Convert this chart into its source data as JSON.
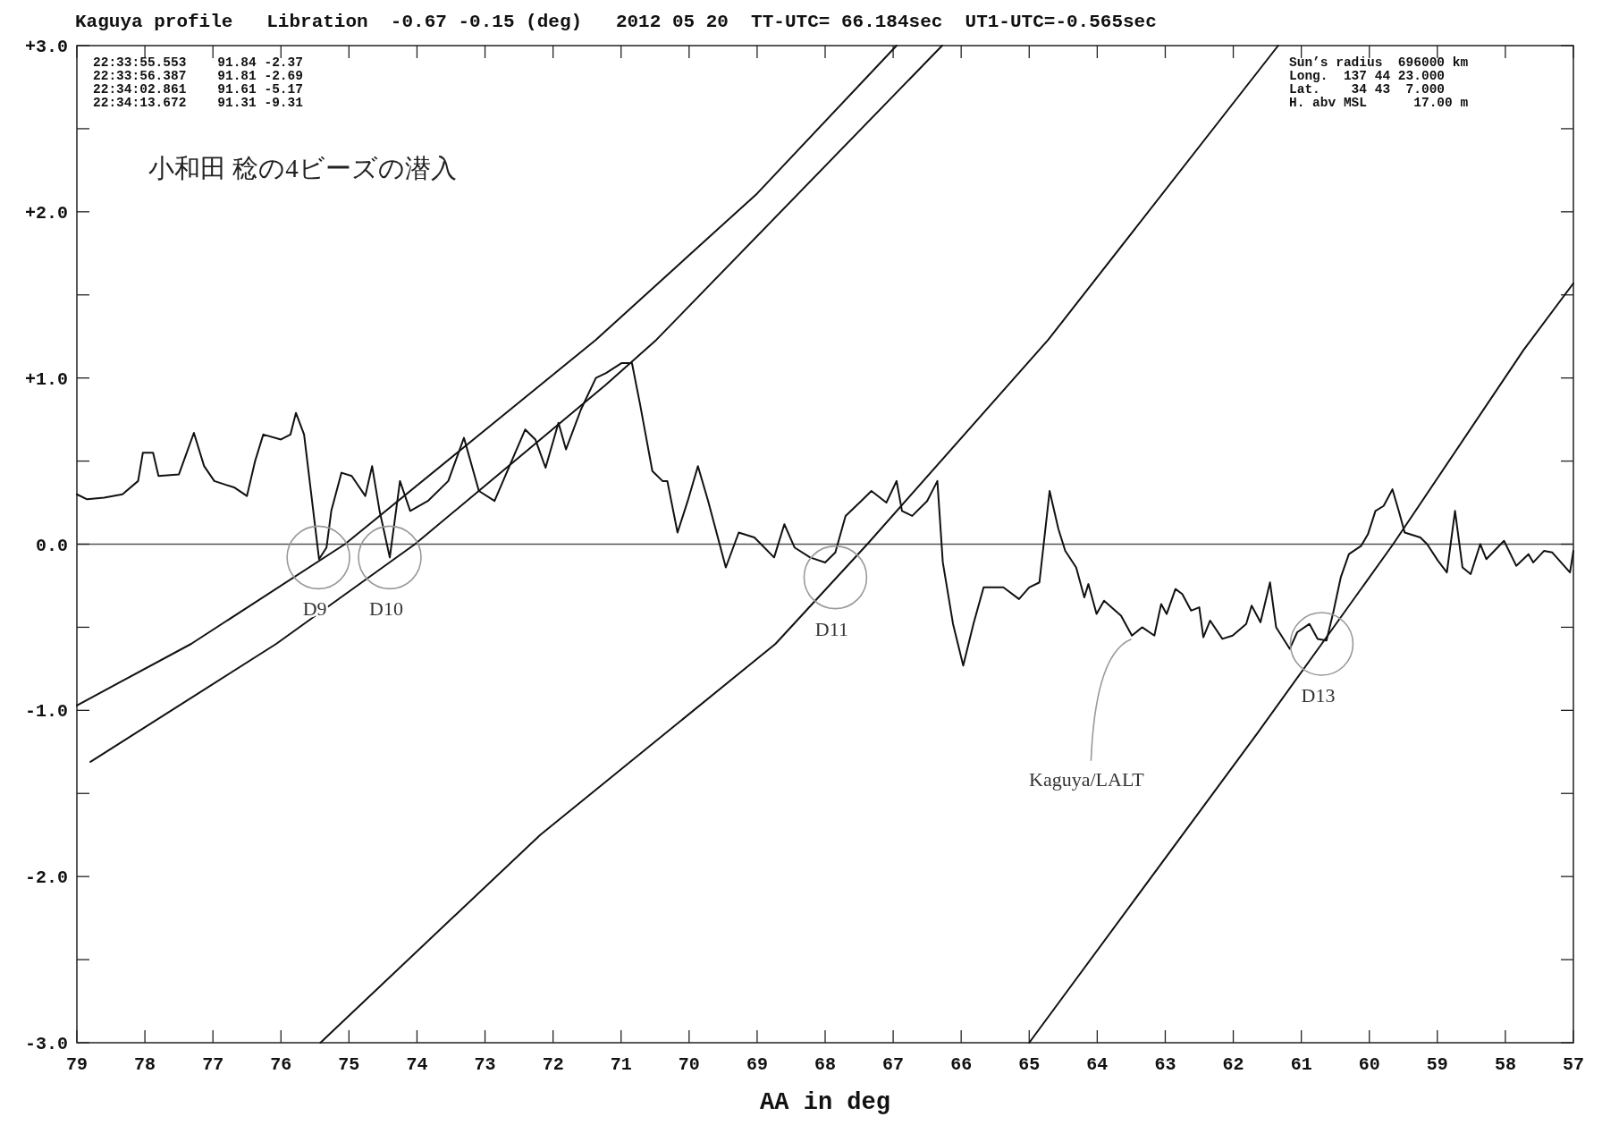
{
  "chart_data": {
    "type": "line",
    "title": "Kaguya profile   Libration  -0.67 -0.15 (deg)   2012 05 20  TT-UTC= 66.184sec  UT1-UTC=-0.565sec",
    "xlabel": "AA in deg",
    "xlim": [
      79,
      57
    ],
    "ylim": [
      -3,
      3
    ],
    "xticks": [
      79,
      78,
      77,
      76,
      75,
      74,
      73,
      72,
      71,
      70,
      69,
      68,
      67,
      66,
      65,
      64,
      63,
      62,
      61,
      60,
      59,
      58,
      57
    ],
    "yticks": [
      {
        "value": 3,
        "label": "+3.0"
      },
      {
        "value": 2.5,
        "label": null
      },
      {
        "value": 2,
        "label": "+2.0"
      },
      {
        "value": 1.5,
        "label": null
      },
      {
        "value": 1,
        "label": "+1.0"
      },
      {
        "value": 0.5,
        "label": null
      },
      {
        "value": 0,
        "label": "0.0"
      },
      {
        "value": -0.5,
        "label": null
      },
      {
        "value": -1,
        "label": "-1.0"
      },
      {
        "value": -1.5,
        "label": null
      },
      {
        "value": -2,
        "label": "-2.0"
      },
      {
        "value": -2.5,
        "label": null
      },
      {
        "value": -3,
        "label": "-3.0"
      }
    ],
    "series": [
      {
        "color": "#111111",
        "x": [
          79.0,
          78.85,
          78.6,
          78.33,
          78.1,
          78.03,
          77.88,
          77.8,
          77.5,
          77.28,
          77.13,
          76.98,
          76.68,
          76.5,
          76.38,
          76.26,
          76.0,
          75.86,
          75.78,
          75.66,
          75.56,
          75.44,
          75.33,
          75.26,
          75.11,
          74.96,
          74.76,
          74.66,
          74.55,
          74.4,
          74.25,
          74.1,
          73.84,
          73.54,
          73.31,
          73.09,
          72.86,
          72.64,
          72.41,
          72.26,
          72.11,
          71.92,
          71.81,
          71.59,
          71.37,
          71.22,
          70.99,
          70.84,
          70.72,
          70.54,
          70.39,
          70.32,
          70.17,
          70.02,
          69.87,
          69.72,
          69.46,
          69.27,
          69.04,
          68.75,
          68.6,
          68.45,
          68.22,
          68.0,
          67.85,
          67.7,
          67.47,
          67.32,
          67.1,
          66.95,
          66.87,
          66.72,
          66.5,
          66.35,
          66.27,
          66.12,
          65.97,
          65.82,
          65.67,
          65.38,
          65.15,
          65.0,
          64.85,
          64.7,
          64.57,
          64.47,
          64.31,
          64.19,
          64.13,
          64.01,
          63.9,
          63.65,
          63.49,
          63.34,
          63.16,
          63.06,
          62.98,
          62.85,
          62.75,
          62.62,
          62.5,
          62.44,
          62.34,
          62.16,
          62.01,
          61.81,
          61.73,
          61.6,
          61.46,
          61.37,
          61.17,
          61.06,
          60.88,
          60.76,
          60.63,
          60.53,
          60.42,
          60.3,
          60.12,
          60.02,
          59.91,
          59.79,
          59.66,
          59.56,
          59.48,
          59.25,
          59.15,
          58.99,
          58.86,
          58.74,
          58.63,
          58.51,
          58.37,
          58.28,
          58.02,
          57.84,
          57.66,
          57.59,
          57.43,
          57.31,
          57.05,
          57.0
        ],
        "values": [
          0.3,
          0.27,
          0.28,
          0.3,
          0.38,
          0.55,
          0.55,
          0.41,
          0.42,
          0.67,
          0.47,
          0.38,
          0.34,
          0.29,
          0.5,
          0.66,
          0.63,
          0.66,
          0.79,
          0.66,
          0.32,
          -0.09,
          -0.02,
          0.2,
          0.43,
          0.41,
          0.29,
          0.47,
          0.2,
          -0.08,
          0.38,
          0.2,
          0.26,
          0.38,
          0.64,
          0.32,
          0.26,
          0.47,
          0.69,
          0.63,
          0.46,
          0.73,
          0.57,
          0.81,
          1.0,
          1.03,
          1.09,
          1.09,
          0.84,
          0.44,
          0.38,
          0.38,
          0.07,
          0.26,
          0.47,
          0.26,
          -0.14,
          0.07,
          0.04,
          -0.08,
          0.12,
          -0.02,
          -0.08,
          -0.11,
          -0.05,
          0.17,
          0.26,
          0.32,
          0.25,
          0.38,
          0.2,
          0.17,
          0.26,
          0.38,
          -0.11,
          -0.48,
          -0.73,
          -0.48,
          -0.26,
          -0.26,
          -0.33,
          -0.26,
          -0.23,
          0.32,
          0.09,
          -0.04,
          -0.14,
          -0.32,
          -0.24,
          -0.42,
          -0.34,
          -0.43,
          -0.55,
          -0.5,
          -0.55,
          -0.36,
          -0.42,
          -0.27,
          -0.3,
          -0.4,
          -0.38,
          -0.56,
          -0.46,
          -0.57,
          -0.55,
          -0.48,
          -0.37,
          -0.47,
          -0.23,
          -0.5,
          -0.63,
          -0.53,
          -0.48,
          -0.57,
          -0.58,
          -0.41,
          -0.2,
          -0.06,
          -0.01,
          0.06,
          0.2,
          0.23,
          0.33,
          0.19,
          0.07,
          0.04,
          0.0,
          -0.1,
          -0.17,
          0.2,
          -0.14,
          -0.18,
          0.0,
          -0.09,
          0.02,
          -0.13,
          -0.06,
          -0.11,
          -0.04,
          -0.05,
          -0.17,
          -0.04
        ]
      },
      {
        "color": "#111111",
        "x": [
          79,
          77.32,
          75.06,
          71.37,
          69,
          66.95
        ],
        "values": [
          -0.97,
          -0.6,
          0,
          1.23,
          2.11,
          3.0
        ]
      },
      {
        "color": "#111111",
        "x": [
          78.8,
          76.07,
          74.03,
          71.22,
          70.48,
          66.28
        ],
        "values": [
          -1.31,
          -0.6,
          0,
          0.96,
          1.23,
          3.0
        ]
      },
      {
        "color": "#111111",
        "x": [
          75.42,
          72.19,
          68.73,
          67.38,
          64.72,
          61.34
        ],
        "values": [
          -3,
          -1.75,
          -0.6,
          0,
          1.23,
          3.0
        ]
      },
      {
        "color": "#111111",
        "x": [
          65.0,
          61.65,
          60.7,
          59.65,
          57.73,
          57.0
        ],
        "values": [
          -3,
          -1.14,
          -0.6,
          0,
          1.17,
          1.57
        ]
      }
    ],
    "ref_lines": [
      {
        "axis": "y",
        "value": 0,
        "color": "#555555"
      }
    ],
    "annotations": [
      "22:33:55.553    91.84 -2.37",
      "22:33:56.387    91.81 -2.69",
      "22:34:02.861    91.61 -5.17",
      "22:34:13.672    91.31 -9.31",
      "Sun’s radius  696000 km",
      "Long.  137 44 23.000",
      "Lat.    34 43  7.000",
      "H. abv MSL      17.00 m",
      "小和田 稔の4ビーズの潜入",
      {
        "text": "D9",
        "x": 75.45,
        "y": -0.08
      },
      {
        "text": "D10",
        "x": 74.4,
        "y": -0.08
      },
      {
        "text": "D11",
        "x": 67.85,
        "y": -0.2
      },
      {
        "text": "D13",
        "x": 60.7,
        "y": -0.6
      },
      {
        "text": "Kaguya/LALT",
        "x": 63.5,
        "y": -0.55
      }
    ],
    "marker": "none",
    "line_style": "solid"
  }
}
